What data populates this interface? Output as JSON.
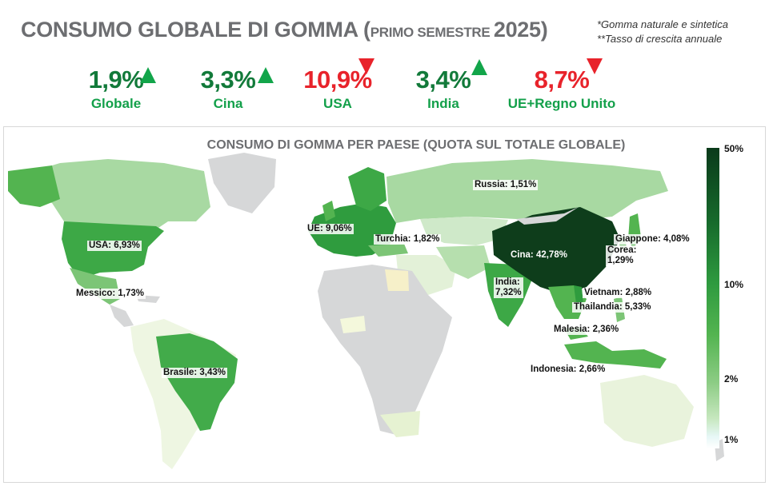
{
  "header": {
    "title_main": "CONSUMO GLOBALE DI GOMMA (",
    "title_small": "PRIMO SEMESTRE ",
    "title_year": "2025)",
    "note1": "*Gomma naturale e sintetica",
    "note2": "**Tasso di crescita annuale"
  },
  "kpis": [
    {
      "value": "1,9%",
      "label": "Globale",
      "trend": "up"
    },
    {
      "value": "3,3%",
      "label": "Cina",
      "trend": "up"
    },
    {
      "value": "10,9%",
      "label": "USA",
      "trend": "down"
    },
    {
      "value": "3,4%",
      "label": "India",
      "trend": "up"
    },
    {
      "value": "8,7%",
      "label": "UE+Regno Unito",
      "trend": "down"
    }
  ],
  "map": {
    "title": "CONSUMO DI GOMMA PER PAESE (QUOTA SUL TOTALE GLOBALE)",
    "legend_ticks": [
      "50%",
      "10%",
      "2%",
      "1%"
    ],
    "countries": [
      {
        "name": "Russia",
        "share": "1,51%",
        "label": "Russia: 1,51%",
        "share_value": 1.51
      },
      {
        "name": "UE",
        "share": "9,06%",
        "label": "UE: 9,06%",
        "share_value": 9.06
      },
      {
        "name": "Turchia",
        "share": "1,82%",
        "label": "Turchia: 1,82%",
        "share_value": 1.82
      },
      {
        "name": "USA",
        "share": "6,93%",
        "label": "USA: 6,93%",
        "share_value": 6.93
      },
      {
        "name": "Messico",
        "share": "1,73%",
        "label": "Messico: 1,73%",
        "share_value": 1.73
      },
      {
        "name": "Cina",
        "share": "42,78%",
        "label": "Cina: 42,78%",
        "share_value": 42.78
      },
      {
        "name": "Giappone",
        "share": "4,08%",
        "label": "Giappone: 4,08%",
        "share_value": 4.08
      },
      {
        "name": "Corea",
        "share": "1,29%",
        "label_line1": "Corea:",
        "label_line2": "1,29%",
        "share_value": 1.29
      },
      {
        "name": "India",
        "share": "7,32%",
        "label_line1": "India:",
        "label_line2": "7,32%",
        "share_value": 7.32
      },
      {
        "name": "Vietnam",
        "share": "2,88%",
        "label": "Vietnam: 2,88%",
        "share_value": 2.88
      },
      {
        "name": "Thailandia",
        "share": "5,33%",
        "label": "Thailandia: 5,33%",
        "share_value": 5.33
      },
      {
        "name": "Malesia",
        "share": "2,36%",
        "label": "Malesia: 2,36%",
        "share_value": 2.36
      },
      {
        "name": "Indonesia",
        "share": "2,66%",
        "label": "Indonesia: 2,66%",
        "share_value": 2.66
      },
      {
        "name": "Brasile",
        "share": "3,43%",
        "label": "Brasile: 3,43%",
        "share_value": 3.43
      }
    ]
  },
  "colors": {
    "title_gray": "#6d6e71",
    "up_value": "#127a3a",
    "up_label": "#13a04a",
    "down_value": "#e8232b",
    "arrow_up": "#12a54a",
    "arrow_down": "#e8232b",
    "land_no_data": "#d6d7d8"
  }
}
